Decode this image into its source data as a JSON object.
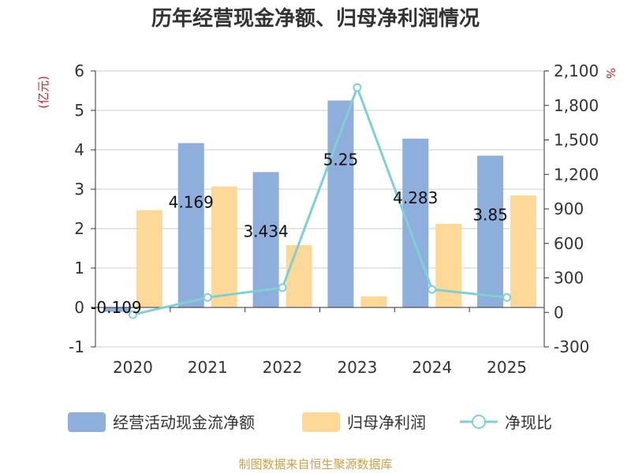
{
  "chart_data": {
    "type": "bar",
    "title": "历年经营现金净额、归母净利润情况",
    "categories": [
      "2020",
      "2021",
      "2022",
      "2023",
      "2024",
      "2025"
    ],
    "left_axis": {
      "unit": "(亿元)",
      "ylim": [
        -1,
        6
      ],
      "ticks": [
        "-1",
        "0",
        "1",
        "2",
        "3",
        "4",
        "5",
        "6"
      ],
      "tick_values": [
        -1,
        0,
        1,
        2,
        3,
        4,
        5,
        6
      ]
    },
    "right_axis": {
      "unit": "%",
      "ylim": [
        -300,
        2100
      ],
      "ticks": [
        "-300",
        "0",
        "300",
        "600",
        "900",
        "1,200",
        "1,500",
        "1,800",
        "2,100"
      ],
      "tick_values": [
        -300,
        0,
        300,
        600,
        900,
        1200,
        1500,
        1800,
        2100
      ]
    },
    "series": [
      {
        "name": "经营活动现金流净额",
        "type": "bar",
        "axis": "left",
        "color": "#8eaedb",
        "values": [
          -0.109,
          4.169,
          3.434,
          5.25,
          4.283,
          3.85
        ],
        "labels": [
          "-0.109",
          "4.169",
          "3.434",
          "5.25",
          "4.283",
          "3.85"
        ]
      },
      {
        "name": "归母净利润",
        "type": "bar",
        "axis": "left",
        "color": "#fdd897",
        "values": [
          2.47,
          3.07,
          1.58,
          0.28,
          2.12,
          2.84
        ]
      },
      {
        "name": "净现比",
        "type": "line",
        "axis": "right",
        "color": "#7fd0d6",
        "values": [
          -20,
          130,
          215,
          1955,
          200,
          130
        ]
      }
    ],
    "grid": true,
    "legend_position": "bottom"
  },
  "source": "制图数据来自恒生聚源数据库",
  "colors": {
    "unit_red": "#e02020",
    "source_gold": "#c9a24a",
    "grid": "#cccccc",
    "axis": "#333333"
  }
}
